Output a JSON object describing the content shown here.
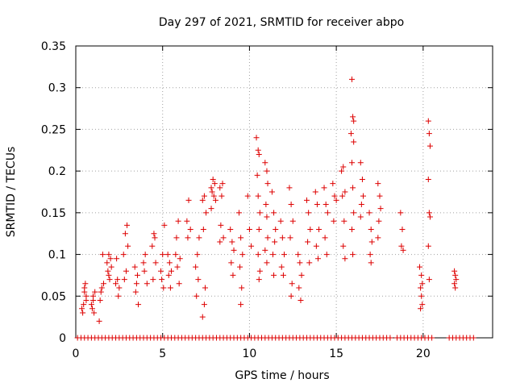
{
  "chart_data": {
    "type": "scatter",
    "title": "Day 297 of 2021, SRMTID for receiver abpo",
    "xlabel": "GPS time / hours",
    "ylabel": "SRMTID / TECUs",
    "xlim": [
      0,
      24
    ],
    "ylim": [
      0,
      0.35
    ],
    "xticks": [
      0,
      5,
      10,
      15,
      20
    ],
    "yticks": [
      0,
      0.05,
      0.1,
      0.15,
      0.2,
      0.25,
      0.3,
      0.35
    ],
    "ytick_labels": [
      "0",
      "0.05",
      "0.1",
      "0.15",
      "0.2",
      "0.25",
      "0.3",
      "0.35"
    ],
    "grid": true,
    "marker": "+",
    "color": "#dd0000",
    "series": [
      {
        "name": "SRMTID",
        "points": [
          [
            0.4,
            0.03
          ],
          [
            0.45,
            0.04
          ],
          [
            0.5,
            0.06
          ],
          [
            0.55,
            0.065
          ],
          [
            0.6,
            0.05
          ],
          [
            0.35,
            0.035
          ],
          [
            0.5,
            0.055
          ],
          [
            0.6,
            0.045
          ],
          [
            0.9,
            0.04
          ],
          [
            1.0,
            0.05
          ],
          [
            1.05,
            0.03
          ],
          [
            1.1,
            0.055
          ],
          [
            0.95,
            0.035
          ],
          [
            1.0,
            0.045
          ],
          [
            1.4,
            0.045
          ],
          [
            1.5,
            0.06
          ],
          [
            1.6,
            0.065
          ],
          [
            1.55,
            0.1
          ],
          [
            1.45,
            0.055
          ],
          [
            1.35,
            0.02
          ],
          [
            1.8,
            0.09
          ],
          [
            1.9,
            0.1
          ],
          [
            2.0,
            0.095
          ],
          [
            1.85,
            0.08
          ],
          [
            1.95,
            0.07
          ],
          [
            2.05,
            0.085
          ],
          [
            1.9,
            0.075
          ],
          [
            2.3,
            0.065
          ],
          [
            2.4,
            0.07
          ],
          [
            2.5,
            0.06
          ],
          [
            2.35,
            0.095
          ],
          [
            2.45,
            0.05
          ],
          [
            2.8,
            0.07
          ],
          [
            2.9,
            0.08
          ],
          [
            3.0,
            0.11
          ],
          [
            2.85,
            0.125
          ],
          [
            2.95,
            0.135
          ],
          [
            2.75,
            0.1
          ],
          [
            3.4,
            0.085
          ],
          [
            3.5,
            0.065
          ],
          [
            3.6,
            0.04
          ],
          [
            3.45,
            0.055
          ],
          [
            3.55,
            0.075
          ],
          [
            3.9,
            0.09
          ],
          [
            4.0,
            0.1
          ],
          [
            4.1,
            0.065
          ],
          [
            3.95,
            0.08
          ],
          [
            4.4,
            0.11
          ],
          [
            4.5,
            0.125
          ],
          [
            4.6,
            0.09
          ],
          [
            4.55,
            0.12
          ],
          [
            4.45,
            0.07
          ],
          [
            4.9,
            0.08
          ],
          [
            5.0,
            0.1
          ],
          [
            5.1,
            0.135
          ],
          [
            4.95,
            0.07
          ],
          [
            5.05,
            0.06
          ],
          [
            5.3,
            0.1
          ],
          [
            5.4,
            0.09
          ],
          [
            5.5,
            0.08
          ],
          [
            5.45,
            0.06
          ],
          [
            5.35,
            0.075
          ],
          [
            5.8,
            0.12
          ],
          [
            5.9,
            0.14
          ],
          [
            6.0,
            0.095
          ],
          [
            5.85,
            0.085
          ],
          [
            5.95,
            0.065
          ],
          [
            5.75,
            0.1
          ],
          [
            6.4,
            0.14
          ],
          [
            6.5,
            0.165
          ],
          [
            6.6,
            0.13
          ],
          [
            6.45,
            0.12
          ],
          [
            6.9,
            0.085
          ],
          [
            7.0,
            0.1
          ],
          [
            7.1,
            0.12
          ],
          [
            6.95,
            0.05
          ],
          [
            7.05,
            0.07
          ],
          [
            7.3,
            0.165
          ],
          [
            7.4,
            0.17
          ],
          [
            7.5,
            0.15
          ],
          [
            7.35,
            0.13
          ],
          [
            7.45,
            0.06
          ],
          [
            7.3,
            0.025
          ],
          [
            7.4,
            0.04
          ],
          [
            7.8,
            0.18
          ],
          [
            7.9,
            0.19
          ],
          [
            8.0,
            0.185
          ],
          [
            7.85,
            0.175
          ],
          [
            7.95,
            0.17
          ],
          [
            8.05,
            0.165
          ],
          [
            7.8,
            0.155
          ],
          [
            8.3,
            0.18
          ],
          [
            8.4,
            0.17
          ],
          [
            8.5,
            0.12
          ],
          [
            8.35,
            0.135
          ],
          [
            8.45,
            0.185
          ],
          [
            8.3,
            0.115
          ],
          [
            8.9,
            0.13
          ],
          [
            9.0,
            0.115
          ],
          [
            9.1,
            0.105
          ],
          [
            8.95,
            0.09
          ],
          [
            9.05,
            0.075
          ],
          [
            9.4,
            0.15
          ],
          [
            9.5,
            0.12
          ],
          [
            9.6,
            0.1
          ],
          [
            9.45,
            0.085
          ],
          [
            9.55,
            0.06
          ],
          [
            9.5,
            0.04
          ],
          [
            9.9,
            0.17
          ],
          [
            10.0,
            0.13
          ],
          [
            10.1,
            0.11
          ],
          [
            10.4,
            0.24
          ],
          [
            10.5,
            0.225
          ],
          [
            10.55,
            0.22
          ],
          [
            10.45,
            0.195
          ],
          [
            10.5,
            0.17
          ],
          [
            10.6,
            0.15
          ],
          [
            10.55,
            0.13
          ],
          [
            10.5,
            0.1
          ],
          [
            10.6,
            0.08
          ],
          [
            10.55,
            0.07
          ],
          [
            10.9,
            0.21
          ],
          [
            11.0,
            0.2
          ],
          [
            11.05,
            0.185
          ],
          [
            10.95,
            0.16
          ],
          [
            11.0,
            0.145
          ],
          [
            11.05,
            0.12
          ],
          [
            10.9,
            0.105
          ],
          [
            11.0,
            0.09
          ],
          [
            11.3,
            0.175
          ],
          [
            11.4,
            0.15
          ],
          [
            11.5,
            0.13
          ],
          [
            11.45,
            0.115
          ],
          [
            11.35,
            0.1
          ],
          [
            11.4,
            0.075
          ],
          [
            11.8,
            0.14
          ],
          [
            11.9,
            0.12
          ],
          [
            12.0,
            0.1
          ],
          [
            11.85,
            0.085
          ],
          [
            11.95,
            0.075
          ],
          [
            12.3,
            0.18
          ],
          [
            12.4,
            0.16
          ],
          [
            12.5,
            0.14
          ],
          [
            12.35,
            0.12
          ],
          [
            12.45,
            0.065
          ],
          [
            12.4,
            0.05
          ],
          [
            12.8,
            0.1
          ],
          [
            12.9,
            0.09
          ],
          [
            13.0,
            0.075
          ],
          [
            12.85,
            0.06
          ],
          [
            12.95,
            0.045
          ],
          [
            13.3,
            0.165
          ],
          [
            13.4,
            0.15
          ],
          [
            13.5,
            0.13
          ],
          [
            13.35,
            0.115
          ],
          [
            13.45,
            0.09
          ],
          [
            13.8,
            0.175
          ],
          [
            13.9,
            0.16
          ],
          [
            14.0,
            0.13
          ],
          [
            13.85,
            0.11
          ],
          [
            13.95,
            0.095
          ],
          [
            14.3,
            0.18
          ],
          [
            14.4,
            0.16
          ],
          [
            14.5,
            0.15
          ],
          [
            14.35,
            0.12
          ],
          [
            14.45,
            0.1
          ],
          [
            14.8,
            0.185
          ],
          [
            14.9,
            0.17
          ],
          [
            15.0,
            0.165
          ],
          [
            14.85,
            0.14
          ],
          [
            15.3,
            0.2
          ],
          [
            15.4,
            0.205
          ],
          [
            15.5,
            0.175
          ],
          [
            15.35,
            0.17
          ],
          [
            15.45,
            0.14
          ],
          [
            15.4,
            0.11
          ],
          [
            15.5,
            0.095
          ],
          [
            15.9,
            0.31
          ],
          [
            15.95,
            0.265
          ],
          [
            16.0,
            0.26
          ],
          [
            15.85,
            0.245
          ],
          [
            16.0,
            0.235
          ],
          [
            15.9,
            0.21
          ],
          [
            15.95,
            0.18
          ],
          [
            16.0,
            0.15
          ],
          [
            15.9,
            0.13
          ],
          [
            15.95,
            0.1
          ],
          [
            16.4,
            0.21
          ],
          [
            16.5,
            0.19
          ],
          [
            16.55,
            0.17
          ],
          [
            16.45,
            0.16
          ],
          [
            16.4,
            0.145
          ],
          [
            16.9,
            0.15
          ],
          [
            17.0,
            0.13
          ],
          [
            17.05,
            0.115
          ],
          [
            16.95,
            0.1
          ],
          [
            17.0,
            0.09
          ],
          [
            17.4,
            0.185
          ],
          [
            17.5,
            0.17
          ],
          [
            17.55,
            0.155
          ],
          [
            17.45,
            0.14
          ],
          [
            17.4,
            0.12
          ],
          [
            18.7,
            0.15
          ],
          [
            18.8,
            0.13
          ],
          [
            18.75,
            0.11
          ],
          [
            18.85,
            0.105
          ],
          [
            19.8,
            0.085
          ],
          [
            19.9,
            0.075
          ],
          [
            19.95,
            0.065
          ],
          [
            19.85,
            0.06
          ],
          [
            19.9,
            0.05
          ],
          [
            19.95,
            0.04
          ],
          [
            19.85,
            0.035
          ],
          [
            20.3,
            0.26
          ],
          [
            20.35,
            0.245
          ],
          [
            20.4,
            0.23
          ],
          [
            20.3,
            0.19
          ],
          [
            20.35,
            0.15
          ],
          [
            20.4,
            0.145
          ],
          [
            20.3,
            0.11
          ],
          [
            20.35,
            0.07
          ],
          [
            21.8,
            0.08
          ],
          [
            21.85,
            0.075
          ],
          [
            21.9,
            0.07
          ],
          [
            21.8,
            0.065
          ],
          [
            21.85,
            0.06
          ]
        ]
      }
    ],
    "zero_row": {
      "ranges": [
        [
          0.1,
          18.2
        ],
        [
          18.5,
          20.5
        ],
        [
          21.5,
          23.0
        ]
      ],
      "step": 0.2,
      "value": 0
    }
  }
}
